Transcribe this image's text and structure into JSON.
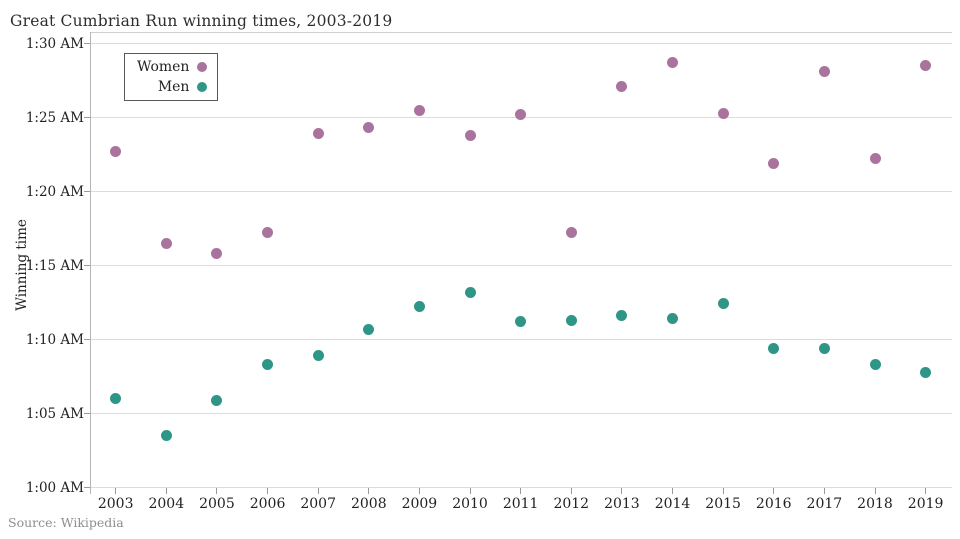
{
  "title": "Great Cumbrian Run winning times, 2003-2019",
  "source_note": "Source: Wikipedia",
  "legend": {
    "items": [
      {
        "label": "Women",
        "color": "#a9739e"
      },
      {
        "label": "Men",
        "color": "#2f9687"
      }
    ]
  },
  "y_axis": {
    "title": "Winning time",
    "tick_labels": [
      "1:00 AM",
      "1:05 AM",
      "1:10 AM",
      "1:15 AM",
      "1:20 AM",
      "1:25 AM",
      "1:30 AM"
    ],
    "tick_minutes": [
      60,
      65,
      70,
      75,
      80,
      85,
      90
    ]
  },
  "x_axis": {
    "tick_labels": [
      "2003",
      "2004",
      "2005",
      "2006",
      "2007",
      "2008",
      "2009",
      "2010",
      "2011",
      "2012",
      "2013",
      "2014",
      "2015",
      "2016",
      "2017",
      "2018",
      "2019"
    ]
  },
  "chart_data": {
    "type": "scatter",
    "title": "Great Cumbrian Run winning times, 2003-2019",
    "xlabel": "",
    "ylabel": "Winning time",
    "x": [
      2003,
      2004,
      2005,
      2006,
      2007,
      2008,
      2009,
      2010,
      2011,
      2012,
      2013,
      2014,
      2015,
      2016,
      2017,
      2018,
      2019
    ],
    "y_unit": "clock minutes after midnight (60 = 1:00 AM, 90 = 1:30 AM)",
    "ylim_minutes": [
      60,
      90
    ],
    "grid": "horizontal",
    "legend_position": "top-left-inside",
    "series": [
      {
        "name": "Women",
        "color": "#a9739e",
        "values_minutes": [
          82.7,
          76.5,
          75.8,
          77.2,
          83.9,
          84.3,
          85.5,
          83.8,
          85.2,
          77.2,
          87.1,
          88.7,
          85.3,
          81.9,
          88.1,
          82.2,
          88.5
        ]
      },
      {
        "name": "Men",
        "color": "#2f9687",
        "values_minutes": [
          66.0,
          63.5,
          65.9,
          68.3,
          68.9,
          70.7,
          72.2,
          73.2,
          71.2,
          71.3,
          71.6,
          71.4,
          72.4,
          69.4,
          69.4,
          68.3,
          67.8
        ]
      }
    ]
  }
}
